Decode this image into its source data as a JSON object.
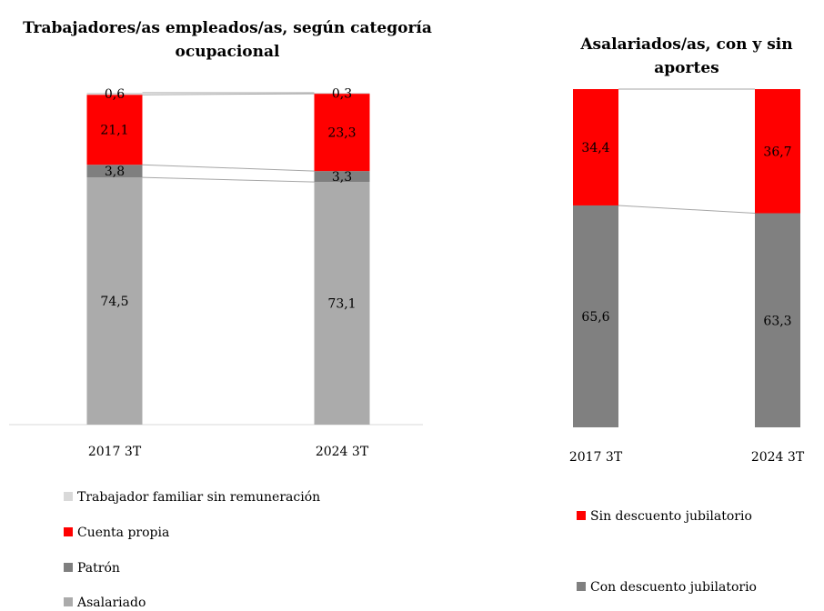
{
  "chart_data": [
    {
      "type": "bar",
      "stacked": true,
      "title": "Trabajadores/as empleados/as, según categoría ocupacional",
      "categories": [
        "2017 3T",
        "2024 3T"
      ],
      "ylim": [
        0,
        100
      ],
      "series": [
        {
          "name": "Trabajador familiar sin remuneración",
          "color": "#d9d9d9",
          "values": [
            0.6,
            0.3
          ],
          "value_labels": [
            "0,6",
            "0,3"
          ]
        },
        {
          "name": "Cuenta propia",
          "color": "#ff0000",
          "values": [
            21.1,
            23.3
          ],
          "value_labels": [
            "21,1",
            "23,3"
          ]
        },
        {
          "name": "Patrón",
          "color": "#7f7f7f",
          "values": [
            3.8,
            3.3
          ],
          "value_labels": [
            "3,8",
            "3,3"
          ]
        },
        {
          "name": "Asalariado",
          "color": "#ababab",
          "values": [
            74.5,
            73.1
          ],
          "value_labels": [
            "74,5",
            "73,1"
          ]
        }
      ]
    },
    {
      "type": "bar",
      "stacked": true,
      "title": "Asalariados/as, con y sin aportes",
      "categories": [
        "2017 3T",
        "2024 3T"
      ],
      "ylim": [
        0,
        100
      ],
      "series": [
        {
          "name": "Sin descuento jubilatorio",
          "color": "#ff0000",
          "values": [
            34.4,
            36.7
          ],
          "value_labels": [
            "34,4",
            "36,7"
          ]
        },
        {
          "name": "Con descuento jubilatorio",
          "color": "#808080",
          "values": [
            65.6,
            63.3
          ],
          "value_labels": [
            "65,6",
            "63,3"
          ]
        }
      ]
    }
  ]
}
